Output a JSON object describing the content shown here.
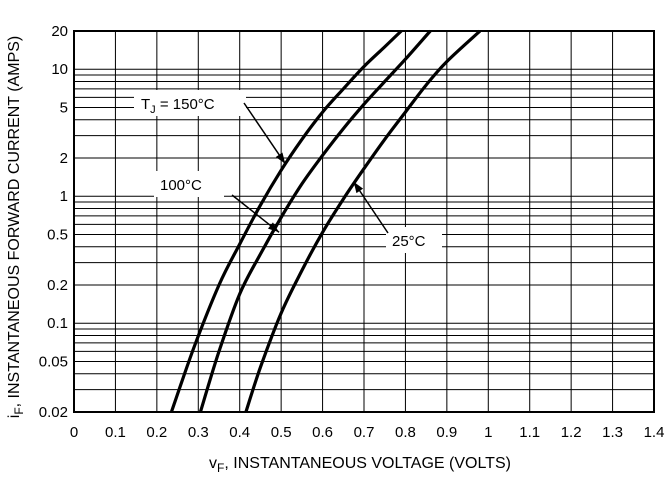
{
  "chart_data": {
    "type": "line",
    "title": "",
    "xlabel_main": "v",
    "xlabel_sub": "F",
    "xlabel_rest": ", INSTANTANEOUS VOLTAGE (VOLTS)",
    "ylabel_main": "i",
    "ylabel_sub": "F",
    "ylabel_rest": ", INSTANTANEOUS FORWARD CURRENT (AMPS)",
    "x_scale": "linear",
    "y_scale": "log",
    "xlim": [
      0,
      1.4
    ],
    "ylim": [
      0.02,
      20
    ],
    "grid": true,
    "x_ticks": [
      {
        "value": 0,
        "label": "0"
      },
      {
        "value": 0.1,
        "label": "0.1"
      },
      {
        "value": 0.2,
        "label": "0.2"
      },
      {
        "value": 0.3,
        "label": "0.3"
      },
      {
        "value": 0.4,
        "label": "0.4"
      },
      {
        "value": 0.5,
        "label": "0.5"
      },
      {
        "value": 0.6,
        "label": "0.6"
      },
      {
        "value": 0.7,
        "label": "0.7"
      },
      {
        "value": 0.8,
        "label": "0.8"
      },
      {
        "value": 0.9,
        "label": "0.9"
      },
      {
        "value": 1.0,
        "label": "1"
      },
      {
        "value": 1.1,
        "label": "1.1"
      },
      {
        "value": 1.2,
        "label": "1.2"
      },
      {
        "value": 1.3,
        "label": "1.3"
      },
      {
        "value": 1.4,
        "label": "1.4"
      }
    ],
    "y_ticks": [
      {
        "value": 0.02,
        "label": "0.02"
      },
      {
        "value": 0.05,
        "label": "0.05"
      },
      {
        "value": 0.1,
        "label": "0.1"
      },
      {
        "value": 0.2,
        "label": "0.2"
      },
      {
        "value": 0.5,
        "label": "0.5"
      },
      {
        "value": 1,
        "label": "1"
      },
      {
        "value": 2,
        "label": "2"
      },
      {
        "value": 5,
        "label": "5"
      },
      {
        "value": 10,
        "label": "10"
      },
      {
        "value": 20,
        "label": "20"
      }
    ],
    "y_minor_gridlines": [
      0.03,
      0.04,
      0.06,
      0.07,
      0.08,
      0.09,
      0.3,
      0.4,
      0.6,
      0.7,
      0.8,
      0.9,
      3,
      4,
      6,
      7,
      8,
      9
    ],
    "series": [
      {
        "name": "TJ = 150°C",
        "x": [
          0.235,
          0.29,
          0.35,
          0.4,
          0.45,
          0.5,
          0.55,
          0.6,
          0.65,
          0.7,
          0.75,
          0.79
        ],
        "y": [
          0.02,
          0.065,
          0.2,
          0.42,
          0.85,
          1.6,
          2.8,
          4.6,
          7.0,
          10.5,
          15.0,
          20.0
        ]
      },
      {
        "name": "100°C",
        "x": [
          0.305,
          0.35,
          0.4,
          0.45,
          0.5,
          0.55,
          0.6,
          0.65,
          0.7,
          0.75,
          0.8,
          0.86
        ],
        "y": [
          0.02,
          0.06,
          0.17,
          0.35,
          0.68,
          1.25,
          2.1,
          3.4,
          5.3,
          8.0,
          12.0,
          20.0
        ]
      },
      {
        "name": "25°C",
        "x": [
          0.415,
          0.45,
          0.5,
          0.55,
          0.6,
          0.65,
          0.7,
          0.75,
          0.8,
          0.85,
          0.9,
          0.98
        ],
        "y": [
          0.02,
          0.045,
          0.12,
          0.26,
          0.52,
          0.95,
          1.65,
          2.8,
          4.6,
          7.5,
          11.5,
          20.0
        ]
      }
    ],
    "annotations": [
      {
        "main": "T",
        "sub": "J",
        "rest": " = 150°C",
        "series": 0,
        "point": {
          "x": 0.51,
          "y": 1.8
        }
      },
      {
        "main": "100°C",
        "sub": "",
        "rest": "",
        "series": 1,
        "point": {
          "x": 0.495,
          "y": 0.52
        }
      },
      {
        "main": "25°C",
        "sub": "",
        "rest": "",
        "series": 2,
        "point": {
          "x": 0.675,
          "y": 1.3
        }
      }
    ]
  }
}
